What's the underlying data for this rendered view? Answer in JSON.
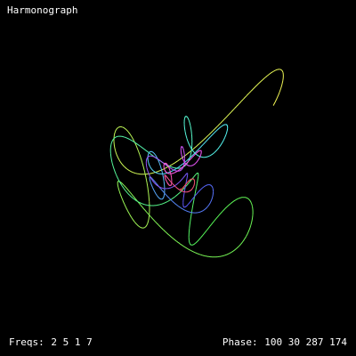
{
  "app": {
    "title": "Harmonograph",
    "background": "#000000",
    "text_color": "#ffffff"
  },
  "status": {
    "freqs_label": "Freqs:",
    "freqs_value": "2 5 1 7",
    "phase_label": "Phase:",
    "phase_value": "100 30 287 174"
  },
  "figure": {
    "frequencies": [
      2,
      5,
      1,
      7
    ],
    "phases_deg": [
      100,
      30,
      287,
      174
    ],
    "palette": "rainbow-gradient"
  }
}
